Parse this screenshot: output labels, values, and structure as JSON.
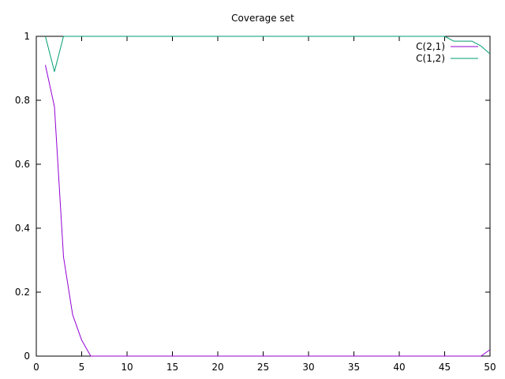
{
  "chart_data": {
    "type": "line",
    "title": "Coverage set",
    "xlabel": "",
    "ylabel": "",
    "xlim": [
      0,
      50
    ],
    "ylim": [
      0,
      1
    ],
    "xticks": [
      0,
      5,
      10,
      15,
      20,
      25,
      30,
      35,
      40,
      45,
      50
    ],
    "yticks": [
      0,
      0.2,
      0.4,
      0.6,
      0.8,
      1
    ],
    "grid": false,
    "legend_position": "top-right",
    "series": [
      {
        "name": "C(2,1)",
        "color": "#9400d3",
        "x": [
          1,
          2,
          3,
          4,
          5,
          6,
          7,
          8,
          9,
          10,
          11,
          12,
          13,
          14,
          15,
          16,
          17,
          18,
          19,
          20,
          21,
          22,
          23,
          24,
          25,
          26,
          27,
          28,
          29,
          30,
          31,
          32,
          33,
          34,
          35,
          36,
          37,
          38,
          39,
          40,
          41,
          42,
          43,
          44,
          45,
          46,
          47,
          48,
          49,
          50
        ],
        "y": [
          0.91,
          0.78,
          0.31,
          0.13,
          0.05,
          0,
          0,
          0,
          0,
          0,
          0,
          0,
          0,
          0,
          0,
          0,
          0,
          0,
          0,
          0,
          0,
          0,
          0,
          0,
          0,
          0,
          0,
          0,
          0,
          0,
          0,
          0,
          0,
          0,
          0,
          0,
          0,
          0,
          0,
          0,
          0,
          0,
          0,
          0,
          0,
          0,
          0,
          0,
          0,
          0.02
        ]
      },
      {
        "name": "C(1,2)",
        "color": "#009e73",
        "x": [
          1,
          2,
          3,
          4,
          5,
          6,
          7,
          8,
          9,
          10,
          11,
          12,
          13,
          14,
          15,
          16,
          17,
          18,
          19,
          20,
          21,
          22,
          23,
          24,
          25,
          26,
          27,
          28,
          29,
          30,
          31,
          32,
          33,
          34,
          35,
          36,
          37,
          38,
          39,
          40,
          41,
          42,
          43,
          44,
          45,
          46,
          47,
          48,
          49,
          50
        ],
        "y": [
          1,
          0.89,
          1,
          1,
          1,
          1,
          1,
          1,
          1,
          1,
          1,
          1,
          1,
          1,
          1,
          1,
          1,
          1,
          1,
          1,
          1,
          1,
          1,
          1,
          1,
          1,
          1,
          1,
          1,
          1,
          1,
          1,
          1,
          1,
          1,
          1,
          1,
          1,
          1,
          1,
          1,
          1,
          1,
          1,
          1,
          0.985,
          0.985,
          0.985,
          0.97,
          0.945
        ]
      }
    ]
  }
}
